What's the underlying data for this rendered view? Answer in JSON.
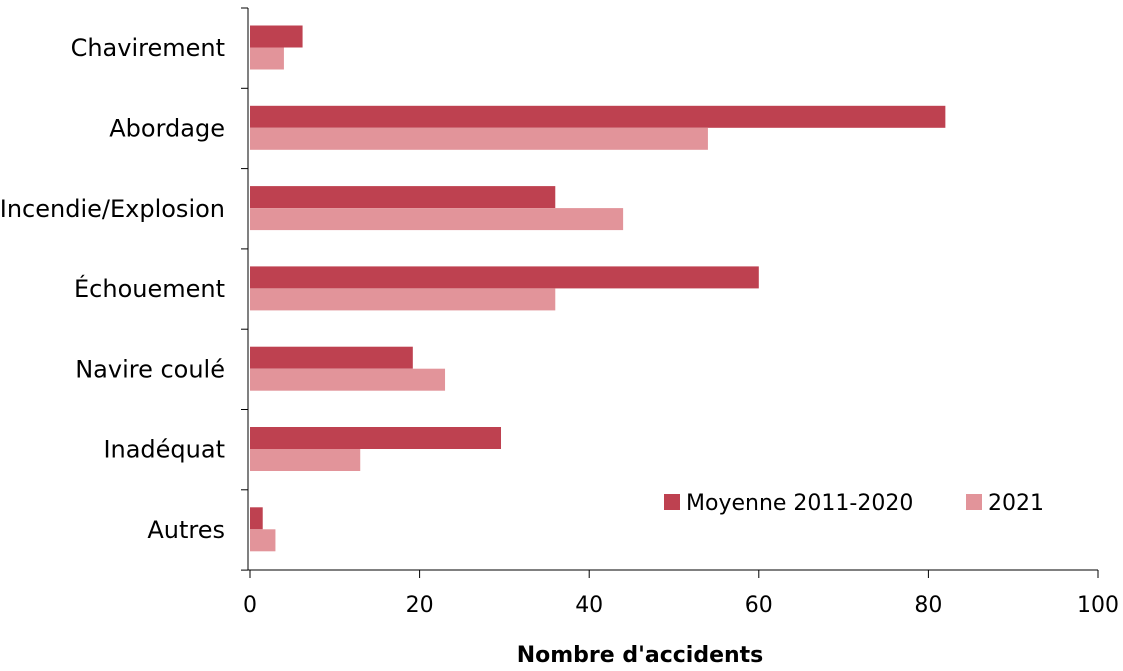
{
  "chart_data": {
    "type": "bar",
    "orientation": "horizontal",
    "categories": [
      "Chavirement",
      "Abordage",
      "Incendie/Explosion",
      "Échouement",
      "Navire coulé",
      "Inadéquat",
      "Autres"
    ],
    "series": [
      {
        "name": "Moyenne 2011-2020",
        "values": [
          6.2,
          82,
          36,
          60,
          19.2,
          29.6,
          1.5
        ],
        "color": "#be4150"
      },
      {
        "name": "2021",
        "values": [
          4,
          54,
          44,
          36,
          23,
          13,
          3
        ],
        "color": "#e2949a"
      }
    ],
    "xlabel": "Nombre d'accidents",
    "ylabel": "",
    "xlim": [
      0,
      100
    ],
    "xticks": [
      0,
      20,
      40,
      60,
      80,
      100
    ],
    "grid": false,
    "legend_position": "bottom-right"
  }
}
